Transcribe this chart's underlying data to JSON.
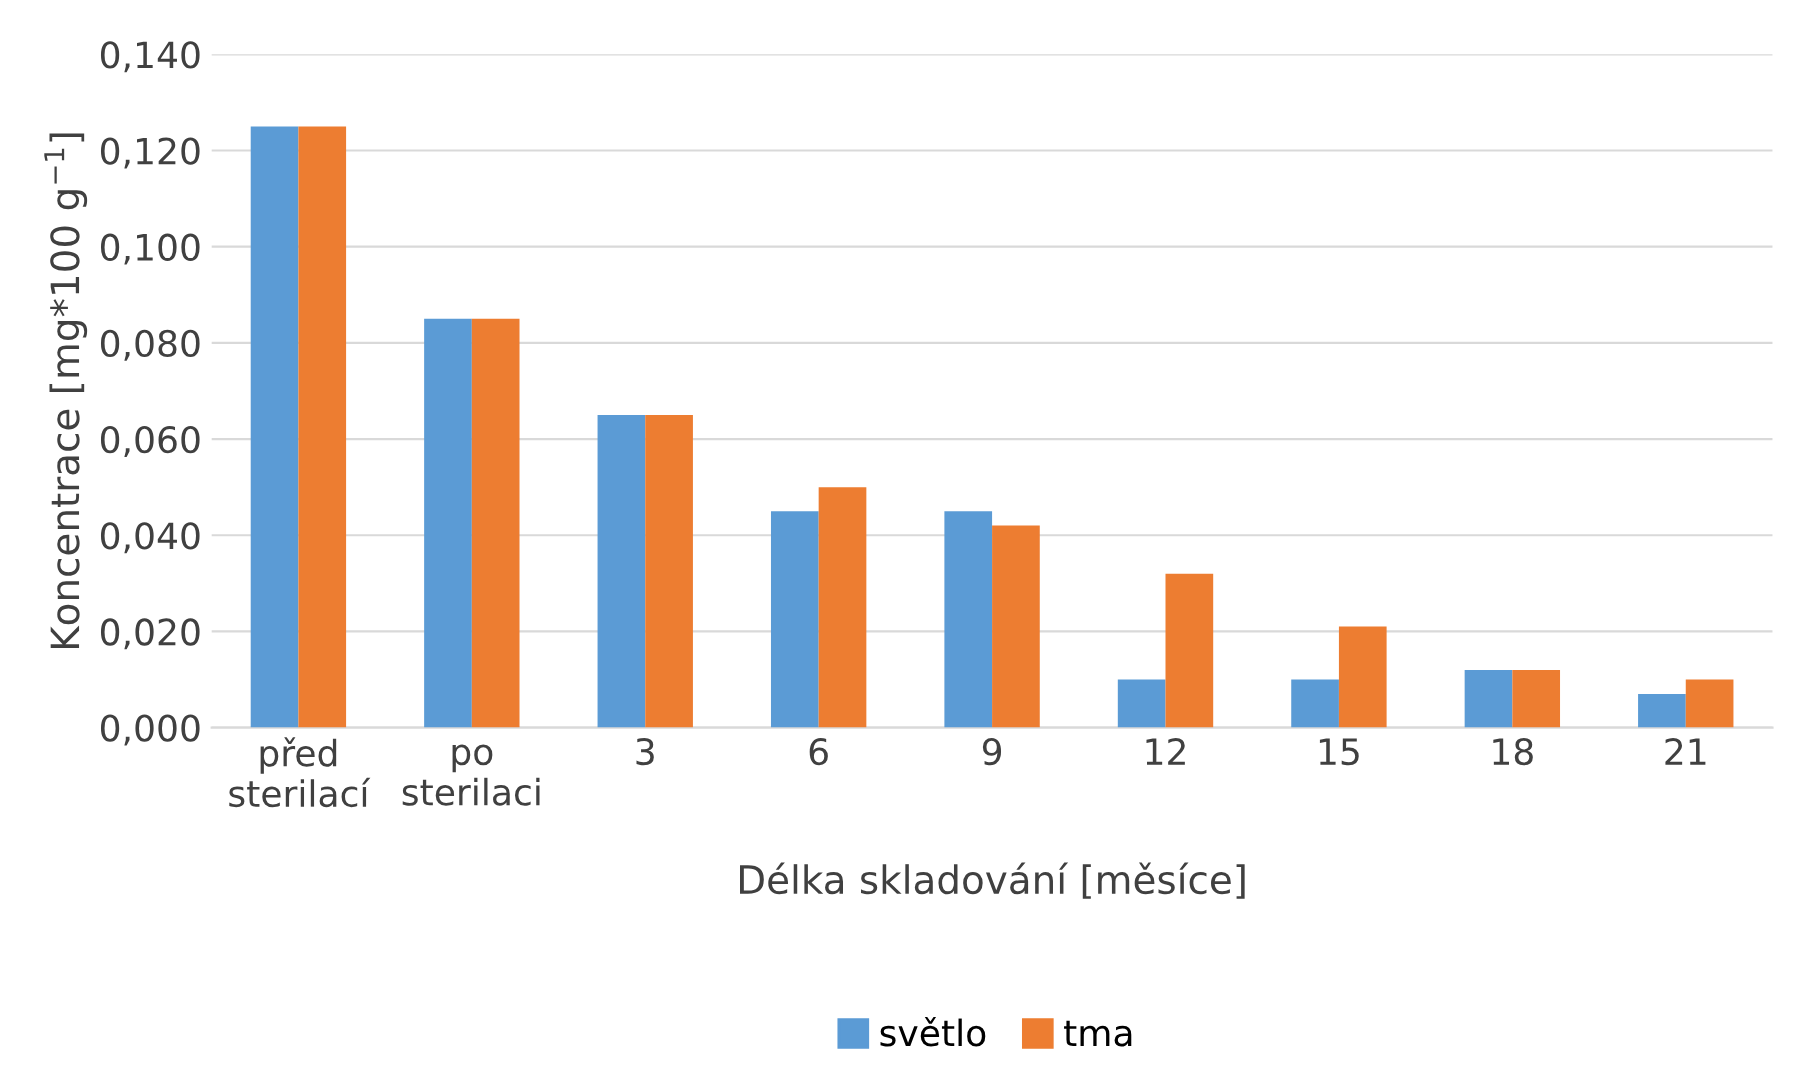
{
  "chart_data": {
    "type": "bar",
    "xlabel": "Délka skladování [měsíce]",
    "ylabel": "Koncentrace [mg*100 g$^{−1}$]",
    "categories": [
      "před\nsterilací",
      "po\nsterilaci",
      "3",
      "6",
      "9",
      "12",
      "15",
      "18",
      "21"
    ],
    "series": [
      {
        "name": "světlo",
        "color": "#5b9bd5",
        "values": [
          0.125,
          0.085,
          0.065,
          0.045,
          0.045,
          0.01,
          0.01,
          0.012,
          0.007
        ]
      },
      {
        "name": "tma",
        "color": "#ed7d31",
        "values": [
          0.125,
          0.085,
          0.065,
          0.05,
          0.042,
          0.032,
          0.021,
          0.012,
          0.01
        ]
      }
    ],
    "ylim": [
      0,
      0.14
    ],
    "yticks": [
      {
        "value": 0,
        "label": "0,000"
      },
      {
        "value": 0.02,
        "label": "0,020"
      },
      {
        "value": 0.04,
        "label": "0,040"
      },
      {
        "value": 0.06,
        "label": "0,060"
      },
      {
        "value": 0.08,
        "label": "0,080"
      },
      {
        "value": 0.1,
        "label": "0,100"
      },
      {
        "value": 0.12,
        "label": "0,120"
      },
      {
        "value": 0.14,
        "label": "0,140"
      }
    ],
    "grid": "y",
    "legend": "bottom"
  }
}
